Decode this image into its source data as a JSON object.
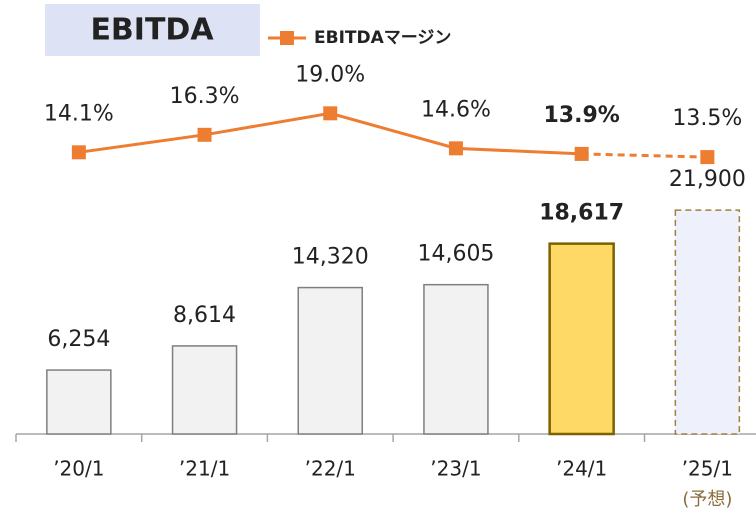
{
  "chart_data": {
    "type": "bar_line",
    "title": "EBITDA",
    "categories": [
      "’20/1",
      "’21/1",
      "’22/1",
      "’23/1",
      "’24/1",
      "’25/1"
    ],
    "forecast_note": "(予想)",
    "highlight_index": 4,
    "forecast_index": 5,
    "ylim": [
      0,
      40000
    ],
    "y2lim": [
      -21.3,
      30.1
    ],
    "series": [
      {
        "name": "EBITDA",
        "type": "bar",
        "color": "#f2f2f2",
        "highlight_color": "#ffd966",
        "forecast_color": "#eef0fb",
        "values": [
          6254,
          8614,
          14320,
          14605,
          18617,
          21900
        ],
        "value_labels": [
          "6,254",
          "8,614",
          "14,320",
          "14,605",
          "18,617",
          "21,900"
        ]
      },
      {
        "name": "EBITDAマージン",
        "type": "line",
        "axis": "y2",
        "color": "#ed7d31",
        "values": [
          14.1,
          16.3,
          19.0,
          14.6,
          13.9,
          13.5
        ],
        "value_labels": [
          "14.1%",
          "16.3%",
          "19.0%",
          "14.6%",
          "13.9%",
          "13.5%"
        ]
      }
    ]
  }
}
